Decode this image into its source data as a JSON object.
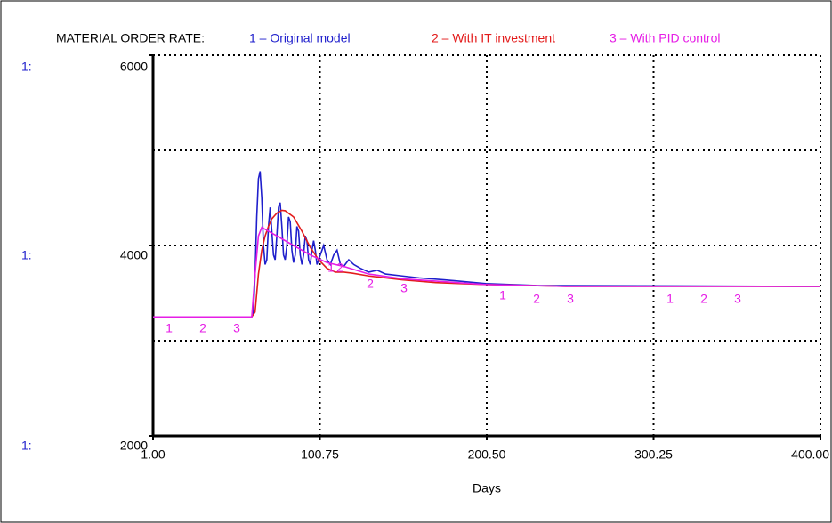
{
  "chart_data": {
    "type": "line",
    "title": "MATERIAL ORDER RATE:",
    "xlabel": "Days",
    "axis_prefix": "1:",
    "xlim": [
      1,
      400
    ],
    "xticks": [
      {
        "value": 1,
        "label": "1.00"
      },
      {
        "value": 100.75,
        "label": "100.75"
      },
      {
        "value": 200.5,
        "label": "200.50"
      },
      {
        "value": 300.25,
        "label": "300.25"
      },
      {
        "value": 400,
        "label": "400.00"
      }
    ],
    "ylim": [
      2000,
      6000
    ],
    "yticks": [
      2000,
      4000,
      6000
    ],
    "ygrid_lines": [
      3000,
      4000,
      5000,
      6000
    ],
    "grid": true,
    "series": [
      {
        "name": "1 – Original model",
        "number": "1",
        "color": "#1f1fcc",
        "x": [
          1,
          60,
          61,
          62,
          63,
          64,
          65,
          66,
          67,
          68,
          69,
          70,
          71,
          72,
          73,
          74,
          75,
          76,
          77,
          78,
          79,
          80,
          81,
          82,
          83,
          84,
          85,
          86,
          87,
          88,
          89,
          90,
          91,
          92,
          93,
          94,
          95,
          96,
          97,
          98,
          99,
          101,
          103,
          105,
          107,
          109,
          111,
          113,
          115,
          118,
          121,
          125,
          130,
          135,
          140,
          150,
          160,
          175,
          200,
          230,
          400
        ],
        "values": [
          3250,
          3250,
          3300,
          3700,
          4300,
          4700,
          4780,
          4500,
          4000,
          3800,
          3850,
          4200,
          4400,
          4150,
          3900,
          3850,
          4100,
          4400,
          4450,
          4200,
          3900,
          3850,
          4000,
          4300,
          4250,
          3950,
          3820,
          3900,
          4200,
          4150,
          3900,
          3800,
          3900,
          4100,
          4050,
          3850,
          3800,
          3950,
          4050,
          3950,
          3800,
          3900,
          4000,
          3850,
          3800,
          3900,
          3950,
          3800,
          3780,
          3850,
          3800,
          3760,
          3720,
          3740,
          3700,
          3680,
          3660,
          3640,
          3600,
          3580,
          3570
        ]
      },
      {
        "name": "2 – With IT investment",
        "number": "2",
        "color": "#e31b1b",
        "x": [
          1,
          60,
          62,
          64,
          66,
          68,
          70,
          72,
          75,
          78,
          80,
          85,
          90,
          95,
          100,
          105,
          110,
          115,
          120,
          130,
          150,
          170,
          200,
          250,
          400
        ],
        "values": [
          3250,
          3250,
          3300,
          3700,
          3950,
          4100,
          4200,
          4280,
          4340,
          4370,
          4365,
          4300,
          4150,
          3980,
          3850,
          3760,
          3720,
          3720,
          3710,
          3680,
          3640,
          3610,
          3590,
          3570,
          3570
        ]
      },
      {
        "name": "3 – With PID control",
        "number": "3",
        "color": "#e61ee6",
        "x": [
          1,
          60,
          62,
          64,
          66,
          70,
          75,
          85,
          95,
          105,
          115,
          130,
          150,
          200,
          250,
          400
        ],
        "values": [
          3250,
          3250,
          3700,
          4100,
          4190,
          4150,
          4100,
          4000,
          3900,
          3820,
          3780,
          3700,
          3650,
          3590,
          3570,
          3570
        ]
      }
    ]
  }
}
